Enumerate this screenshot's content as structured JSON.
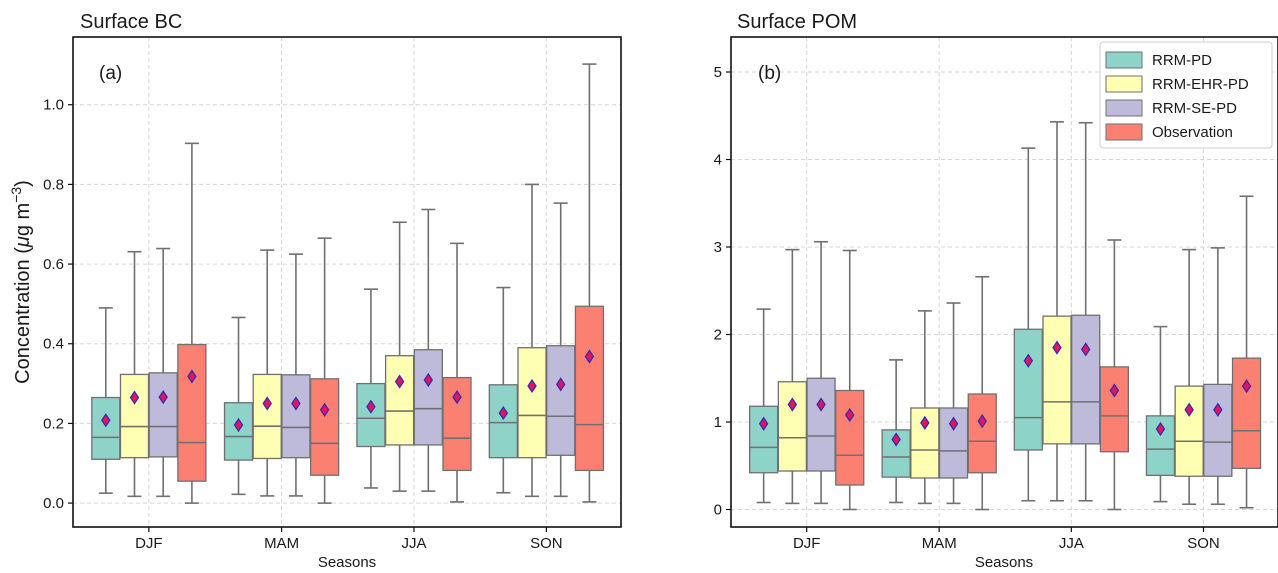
{
  "chart_data": [
    {
      "type": "box",
      "title": "Surface BC",
      "panel_label": "(a)",
      "xlabel": "Seasons",
      "ylabel_main": "Concentration (",
      "ylabel_mu": "μ",
      "ylabel_rest": "g m",
      "ylabel_sup": "−3",
      "ylabel_close": ")",
      "ylim": [
        -0.06,
        1.17
      ],
      "yticks": [
        0.0,
        0.2,
        0.4,
        0.6,
        0.8,
        1.0
      ],
      "ytick_labels": [
        "0.0",
        "0.2",
        "0.4",
        "0.6",
        "0.8",
        "1.0"
      ],
      "categories": [
        "DJF",
        "MAM",
        "JJA",
        "SON"
      ],
      "grid": true,
      "legend": false,
      "series": [
        {
          "name": "RRM-PD",
          "color": "#8dd3c7",
          "boxes": [
            {
              "whislo": 0.025,
              "q1": 0.11,
              "med": 0.165,
              "q3": 0.265,
              "whishi": 0.49,
              "mean": 0.208
            },
            {
              "whislo": 0.022,
              "q1": 0.108,
              "med": 0.167,
              "q3": 0.252,
              "whishi": 0.466,
              "mean": 0.196
            },
            {
              "whislo": 0.038,
              "q1": 0.142,
              "med": 0.213,
              "q3": 0.3,
              "whishi": 0.537,
              "mean": 0.242
            },
            {
              "whislo": 0.026,
              "q1": 0.114,
              "med": 0.202,
              "q3": 0.297,
              "whishi": 0.541,
              "mean": 0.226
            }
          ]
        },
        {
          "name": "RRM-EHR-PD",
          "color": "#ffffb3",
          "boxes": [
            {
              "whislo": 0.017,
              "q1": 0.114,
              "med": 0.192,
              "q3": 0.323,
              "whishi": 0.631,
              "mean": 0.265
            },
            {
              "whislo": 0.018,
              "q1": 0.112,
              "med": 0.193,
              "q3": 0.323,
              "whishi": 0.635,
              "mean": 0.25
            },
            {
              "whislo": 0.03,
              "q1": 0.146,
              "med": 0.231,
              "q3": 0.37,
              "whishi": 0.705,
              "mean": 0.305
            },
            {
              "whislo": 0.017,
              "q1": 0.114,
              "med": 0.22,
              "q3": 0.39,
              "whishi": 0.8,
              "mean": 0.294
            }
          ]
        },
        {
          "name": "RRM-SE-PD",
          "color": "#bebada",
          "boxes": [
            {
              "whislo": 0.017,
              "q1": 0.116,
              "med": 0.192,
              "q3": 0.327,
              "whishi": 0.639,
              "mean": 0.266
            },
            {
              "whislo": 0.018,
              "q1": 0.114,
              "med": 0.19,
              "q3": 0.322,
              "whishi": 0.625,
              "mean": 0.25
            },
            {
              "whislo": 0.03,
              "q1": 0.146,
              "med": 0.237,
              "q3": 0.385,
              "whishi": 0.737,
              "mean": 0.309
            },
            {
              "whislo": 0.017,
              "q1": 0.12,
              "med": 0.218,
              "q3": 0.395,
              "whishi": 0.753,
              "mean": 0.298
            }
          ]
        },
        {
          "name": "Observation",
          "color": "#fb8072",
          "boxes": [
            {
              "whislo": 0.0,
              "q1": 0.055,
              "med": 0.152,
              "q3": 0.398,
              "whishi": 0.903,
              "mean": 0.318
            },
            {
              "whislo": 0.0,
              "q1": 0.07,
              "med": 0.15,
              "q3": 0.312,
              "whishi": 0.665,
              "mean": 0.234
            },
            {
              "whislo": 0.003,
              "q1": 0.082,
              "med": 0.163,
              "q3": 0.315,
              "whishi": 0.652,
              "mean": 0.266
            },
            {
              "whislo": 0.003,
              "q1": 0.082,
              "med": 0.197,
              "q3": 0.494,
              "whishi": 1.102,
              "mean": 0.368
            }
          ]
        }
      ]
    },
    {
      "type": "box",
      "title": "Surface POM",
      "panel_label": "(b)",
      "xlabel": "Seasons",
      "ylim": [
        -0.2,
        5.4
      ],
      "yticks": [
        0,
        1,
        2,
        3,
        4,
        5
      ],
      "ytick_labels": [
        "0",
        "1",
        "2",
        "3",
        "4",
        "5"
      ],
      "categories": [
        "DJF",
        "MAM",
        "JJA",
        "SON"
      ],
      "grid": true,
      "legend": true,
      "legend_position": "top-right",
      "series": [
        {
          "name": "RRM-PD",
          "color": "#8dd3c7",
          "boxes": [
            {
              "whislo": 0.08,
              "q1": 0.42,
              "med": 0.71,
              "q3": 1.18,
              "whishi": 2.29,
              "mean": 0.98
            },
            {
              "whislo": 0.08,
              "q1": 0.37,
              "med": 0.6,
              "q3": 0.91,
              "whishi": 1.71,
              "mean": 0.8
            },
            {
              "whislo": 0.1,
              "q1": 0.68,
              "med": 1.05,
              "q3": 2.06,
              "whishi": 4.13,
              "mean": 1.7
            },
            {
              "whislo": 0.09,
              "q1": 0.39,
              "med": 0.69,
              "q3": 1.07,
              "whishi": 2.09,
              "mean": 0.92
            }
          ]
        },
        {
          "name": "RRM-EHR-PD",
          "color": "#ffffb3",
          "boxes": [
            {
              "whislo": 0.07,
              "q1": 0.44,
              "med": 0.82,
              "q3": 1.46,
              "whishi": 2.97,
              "mean": 1.2
            },
            {
              "whislo": 0.07,
              "q1": 0.36,
              "med": 0.68,
              "q3": 1.16,
              "whishi": 2.27,
              "mean": 0.99
            },
            {
              "whislo": 0.1,
              "q1": 0.75,
              "med": 1.23,
              "q3": 2.21,
              "whishi": 4.43,
              "mean": 1.85
            },
            {
              "whislo": 0.06,
              "q1": 0.38,
              "med": 0.78,
              "q3": 1.41,
              "whishi": 2.97,
              "mean": 1.14
            }
          ]
        },
        {
          "name": "RRM-SE-PD",
          "color": "#bebada",
          "boxes": [
            {
              "whislo": 0.07,
              "q1": 0.44,
              "med": 0.84,
              "q3": 1.5,
              "whishi": 3.06,
              "mean": 1.2
            },
            {
              "whislo": 0.07,
              "q1": 0.36,
              "med": 0.67,
              "q3": 1.16,
              "whishi": 2.36,
              "mean": 0.98
            },
            {
              "whislo": 0.1,
              "q1": 0.75,
              "med": 1.23,
              "q3": 2.22,
              "whishi": 4.42,
              "mean": 1.83
            },
            {
              "whislo": 0.06,
              "q1": 0.38,
              "med": 0.77,
              "q3": 1.43,
              "whishi": 2.99,
              "mean": 1.14
            }
          ]
        },
        {
          "name": "Observation",
          "color": "#fb8072",
          "boxes": [
            {
              "whislo": 0.0,
              "q1": 0.28,
              "med": 0.62,
              "q3": 1.36,
              "whishi": 2.96,
              "mean": 1.08
            },
            {
              "whislo": 0.0,
              "q1": 0.42,
              "med": 0.78,
              "q3": 1.32,
              "whishi": 2.66,
              "mean": 1.01
            },
            {
              "whislo": 0.0,
              "q1": 0.66,
              "med": 1.07,
              "q3": 1.63,
              "whishi": 3.08,
              "mean": 1.36
            },
            {
              "whislo": 0.02,
              "q1": 0.47,
              "med": 0.9,
              "q3": 1.73,
              "whishi": 3.58,
              "mean": 1.41
            }
          ]
        }
      ]
    }
  ]
}
